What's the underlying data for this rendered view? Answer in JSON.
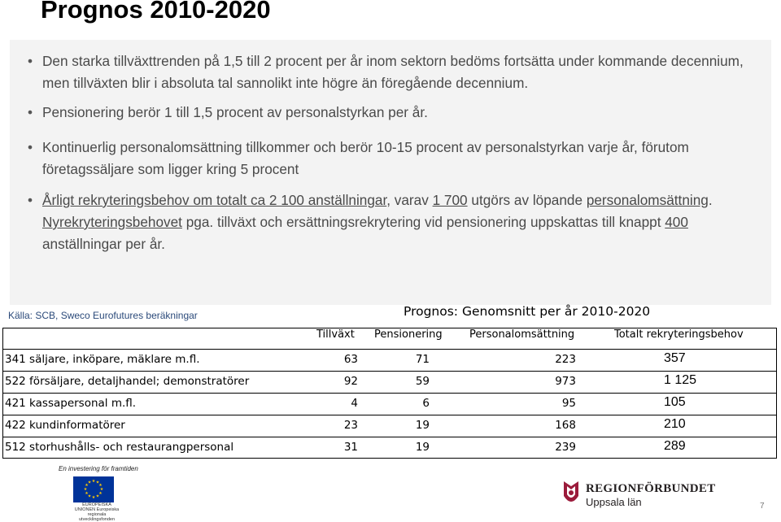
{
  "title": "Prognos 2010-2020",
  "bullets": {
    "b1": "Den starka tillväxttrenden på 1,5 till 2 procent per år inom sektorn bedöms fortsätta under kommande decennium, men tillväxten blir i absoluta tal sannolikt inte högre än föregående decennium.",
    "b2": "Pensionering berör 1 till 1,5 procent av personalstyrkan per år.",
    "b3": "Kontinuerlig personalomsättning tillkommer och berör 10-15 procent av personalstyrkan varje år, förutom företagssäljare som ligger kring 5 procent",
    "b4_part1": "Årligt rekryteringsbehov om totalt ca 2 100 anställningar",
    "b4_part2": ", varav ",
    "b4_part3": "1 700",
    "b4_part4": " utgörs av löpande ",
    "b4_part5": "personalomsättning",
    "b4_part6": ". ",
    "b4_part7": "Nyrekryteringsbehovet",
    "b4_part8": " pga. tillväxt och ersättningsrekrytering vid pensionering uppskattas till knappt ",
    "b4_part9": "400",
    "b4_part10": " anställningar per år."
  },
  "source": "Källa: SCB, Sweco Eurofutures beräkningar",
  "table": {
    "title": "Prognos: Genomsnitt per år 2010-2020",
    "headers": {
      "growth": "Tillväxt",
      "pension": "Pensionering",
      "turnover": "Personalomsättning",
      "total": "Totalt rekryteringsbehov"
    },
    "rows": [
      {
        "occupation": "341 säljare, inköpare, mäklare m.fl.",
        "growth": "63",
        "pension": "71",
        "turnover": "223",
        "total": "357"
      },
      {
        "occupation": "522 försäljare, detaljhandel; demonstratörer",
        "growth": "92",
        "pension": "59",
        "turnover": "973",
        "total": "1 125"
      },
      {
        "occupation": "421 kassapersonal m.fl.",
        "growth": "4",
        "pension": "6",
        "turnover": "95",
        "total": "105"
      },
      {
        "occupation": "422 kundinformatörer",
        "growth": "23",
        "pension": "19",
        "turnover": "168",
        "total": "210"
      },
      {
        "occupation": "512 storhushålls- och restaurangpersonal",
        "growth": "31",
        "pension": "19",
        "turnover": "239",
        "total": "289"
      }
    ]
  },
  "footer": {
    "tagline": "En investering för framtiden",
    "eu_text": "EUROPEISKA UNIONEN Europeiska regionala utvecklingsfonden",
    "org_name": "REGIONFÖRBUNDET",
    "org_sub": "Uppsala län",
    "page_number": "7"
  },
  "colors": {
    "content_bg": "#f3f3f3",
    "body_text": "#4a4a4a",
    "source_text": "#2b4a7a",
    "eu_blue": "#003399",
    "eu_yellow": "#ffcc00",
    "logo_red": "#9b1b3b"
  }
}
